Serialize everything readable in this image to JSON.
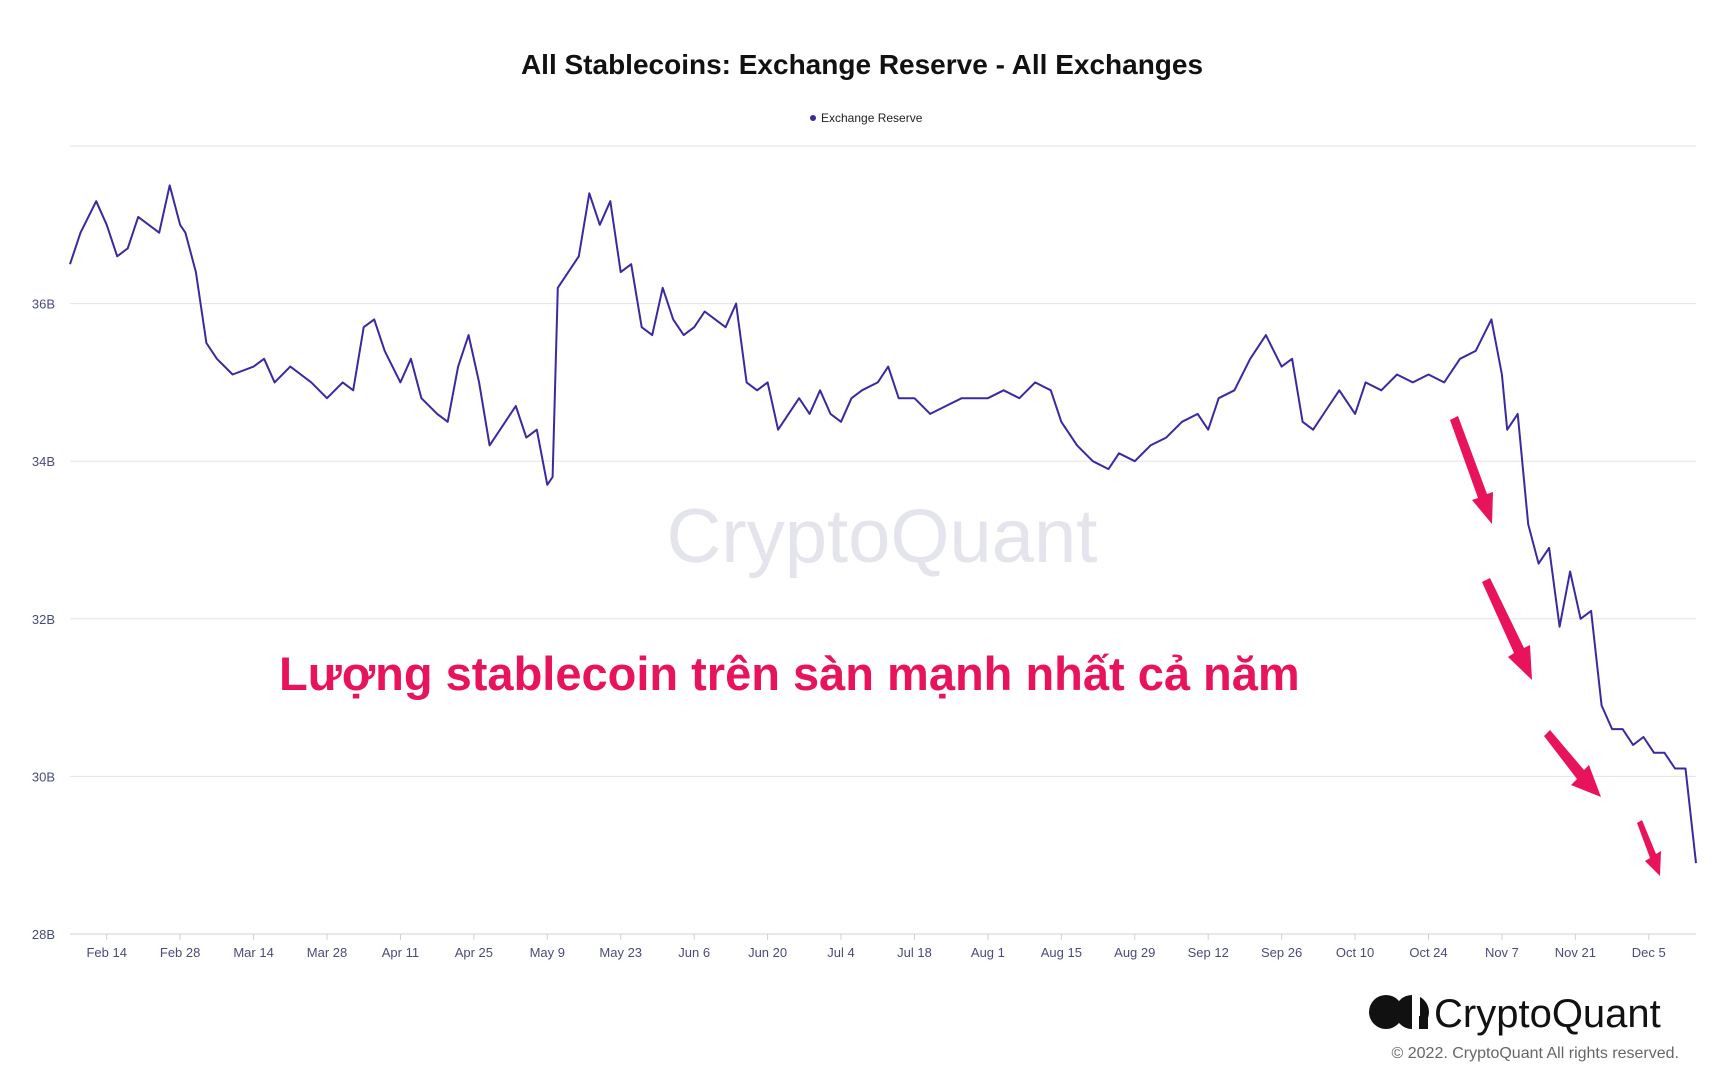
{
  "chart_data": {
    "type": "line",
    "title": "All Stablecoins: Exchange Reserve - All Exchanges",
    "legend": {
      "position": "top-center",
      "entries": [
        "Exchange Reserve"
      ]
    },
    "series_color": "#3a2aa0",
    "xlabel": "",
    "ylabel": "",
    "x_ticks": [
      "Feb 14",
      "Feb 28",
      "Mar 14",
      "Mar 28",
      "Apr 11",
      "Apr 25",
      "May 9",
      "May 23",
      "Jun 6",
      "Jun 20",
      "Jul 4",
      "Jul 18",
      "Aug 1",
      "Aug 15",
      "Aug 29",
      "Sep 12",
      "Sep 26",
      "Oct 10",
      "Oct 24",
      "Nov 7",
      "Nov 21",
      "Dec 5"
    ],
    "y_ticks": [
      "28B",
      "30B",
      "32B",
      "34B",
      "36B"
    ],
    "ylim": [
      28,
      38
    ],
    "grid": true,
    "series": [
      {
        "name": "Exchange Reserve",
        "points": [
          [
            "Feb 7",
            36.5
          ],
          [
            "Feb 9",
            36.9
          ],
          [
            "Feb 12",
            37.3
          ],
          [
            "Feb 14",
            37.0
          ],
          [
            "Feb 16",
            36.6
          ],
          [
            "Feb 18",
            36.7
          ],
          [
            "Feb 20",
            37.1
          ],
          [
            "Feb 22",
            37.0
          ],
          [
            "Feb 24",
            36.9
          ],
          [
            "Feb 26",
            37.5
          ],
          [
            "Feb 28",
            37.0
          ],
          [
            "Mar 1",
            36.9
          ],
          [
            "Mar 3",
            36.4
          ],
          [
            "Mar 5",
            35.5
          ],
          [
            "Mar 7",
            35.3
          ],
          [
            "Mar 10",
            35.1
          ],
          [
            "Mar 14",
            35.2
          ],
          [
            "Mar 16",
            35.3
          ],
          [
            "Mar 18",
            35.0
          ],
          [
            "Mar 21",
            35.2
          ],
          [
            "Mar 25",
            35.0
          ],
          [
            "Mar 28",
            34.8
          ],
          [
            "Mar 31",
            35.0
          ],
          [
            "Apr 2",
            34.9
          ],
          [
            "Apr 4",
            35.7
          ],
          [
            "Apr 6",
            35.8
          ],
          [
            "Apr 8",
            35.4
          ],
          [
            "Apr 11",
            35.0
          ],
          [
            "Apr 13",
            35.3
          ],
          [
            "Apr 15",
            34.8
          ],
          [
            "Apr 18",
            34.6
          ],
          [
            "Apr 20",
            34.5
          ],
          [
            "Apr 22",
            35.2
          ],
          [
            "Apr 24",
            35.6
          ],
          [
            "Apr 26",
            35.0
          ],
          [
            "Apr 28",
            34.2
          ],
          [
            "May 1",
            34.5
          ],
          [
            "May 3",
            34.7
          ],
          [
            "May 5",
            34.3
          ],
          [
            "May 7",
            34.4
          ],
          [
            "May 9",
            33.7
          ],
          [
            "May 10",
            33.8
          ],
          [
            "May 11",
            36.2
          ],
          [
            "May 13",
            36.4
          ],
          [
            "May 15",
            36.6
          ],
          [
            "May 17",
            37.4
          ],
          [
            "May 19",
            37.0
          ],
          [
            "May 21",
            37.3
          ],
          [
            "May 23",
            36.4
          ],
          [
            "May 25",
            36.5
          ],
          [
            "May 27",
            35.7
          ],
          [
            "May 29",
            35.6
          ],
          [
            "May 31",
            36.2
          ],
          [
            "Jun 2",
            35.8
          ],
          [
            "Jun 4",
            35.6
          ],
          [
            "Jun 6",
            35.7
          ],
          [
            "Jun 8",
            35.9
          ],
          [
            "Jun 10",
            35.8
          ],
          [
            "Jun 12",
            35.7
          ],
          [
            "Jun 14",
            36.0
          ],
          [
            "Jun 16",
            35.0
          ],
          [
            "Jun 18",
            34.9
          ],
          [
            "Jun 20",
            35.0
          ],
          [
            "Jun 22",
            34.4
          ],
          [
            "Jun 24",
            34.6
          ],
          [
            "Jun 26",
            34.8
          ],
          [
            "Jun 28",
            34.6
          ],
          [
            "Jun 30",
            34.9
          ],
          [
            "Jul 2",
            34.6
          ],
          [
            "Jul 4",
            34.5
          ],
          [
            "Jul 6",
            34.8
          ],
          [
            "Jul 8",
            34.9
          ],
          [
            "Jul 11",
            35.0
          ],
          [
            "Jul 13",
            35.2
          ],
          [
            "Jul 15",
            34.8
          ],
          [
            "Jul 18",
            34.8
          ],
          [
            "Jul 21",
            34.6
          ],
          [
            "Jul 24",
            34.7
          ],
          [
            "Jul 27",
            34.8
          ],
          [
            "Aug 1",
            34.8
          ],
          [
            "Aug 4",
            34.9
          ],
          [
            "Aug 7",
            34.8
          ],
          [
            "Aug 10",
            35.0
          ],
          [
            "Aug 13",
            34.9
          ],
          [
            "Aug 15",
            34.5
          ],
          [
            "Aug 18",
            34.2
          ],
          [
            "Aug 21",
            34.0
          ],
          [
            "Aug 24",
            33.9
          ],
          [
            "Aug 26",
            34.1
          ],
          [
            "Aug 29",
            34.0
          ],
          [
            "Sep 1",
            34.2
          ],
          [
            "Sep 4",
            34.3
          ],
          [
            "Sep 7",
            34.5
          ],
          [
            "Sep 10",
            34.6
          ],
          [
            "Sep 12",
            34.4
          ],
          [
            "Sep 14",
            34.8
          ],
          [
            "Sep 17",
            34.9
          ],
          [
            "Sep 20",
            35.3
          ],
          [
            "Sep 23",
            35.6
          ],
          [
            "Sep 26",
            35.2
          ],
          [
            "Sep 28",
            35.3
          ],
          [
            "Sep 30",
            34.5
          ],
          [
            "Oct 2",
            34.4
          ],
          [
            "Oct 5",
            34.7
          ],
          [
            "Oct 7",
            34.9
          ],
          [
            "Oct 10",
            34.6
          ],
          [
            "Oct 12",
            35.0
          ],
          [
            "Oct 15",
            34.9
          ],
          [
            "Oct 18",
            35.1
          ],
          [
            "Oct 21",
            35.0
          ],
          [
            "Oct 24",
            35.1
          ],
          [
            "Oct 27",
            35.0
          ],
          [
            "Oct 30",
            35.3
          ],
          [
            "Nov 2",
            35.4
          ],
          [
            "Nov 5",
            35.8
          ],
          [
            "Nov 7",
            35.1
          ],
          [
            "Nov 8",
            34.4
          ],
          [
            "Nov 10",
            34.6
          ],
          [
            "Nov 12",
            33.2
          ],
          [
            "Nov 14",
            32.7
          ],
          [
            "Nov 16",
            32.9
          ],
          [
            "Nov 18",
            31.9
          ],
          [
            "Nov 20",
            32.6
          ],
          [
            "Nov 22",
            32.0
          ],
          [
            "Nov 24",
            32.1
          ],
          [
            "Nov 26",
            30.9
          ],
          [
            "Nov 28",
            30.6
          ],
          [
            "Nov 30",
            30.6
          ],
          [
            "Dec 2",
            30.4
          ],
          [
            "Dec 4",
            30.5
          ],
          [
            "Dec 6",
            30.3
          ],
          [
            "Dec 8",
            30.3
          ],
          [
            "Dec 10",
            30.1
          ],
          [
            "Dec 12",
            30.1
          ],
          [
            "Dec 14",
            28.9
          ]
        ]
      }
    ],
    "annotations": {
      "headline": "Lượng stablecoin trên sàn mạnh nhất cả năm",
      "arrow_color": "#e8135a",
      "arrow_count": 4
    }
  },
  "watermark": "CryptoQuant",
  "branding": {
    "logo_text": "CryptoQuant",
    "copyright": "© 2022. CryptoQuant All rights reserved."
  }
}
